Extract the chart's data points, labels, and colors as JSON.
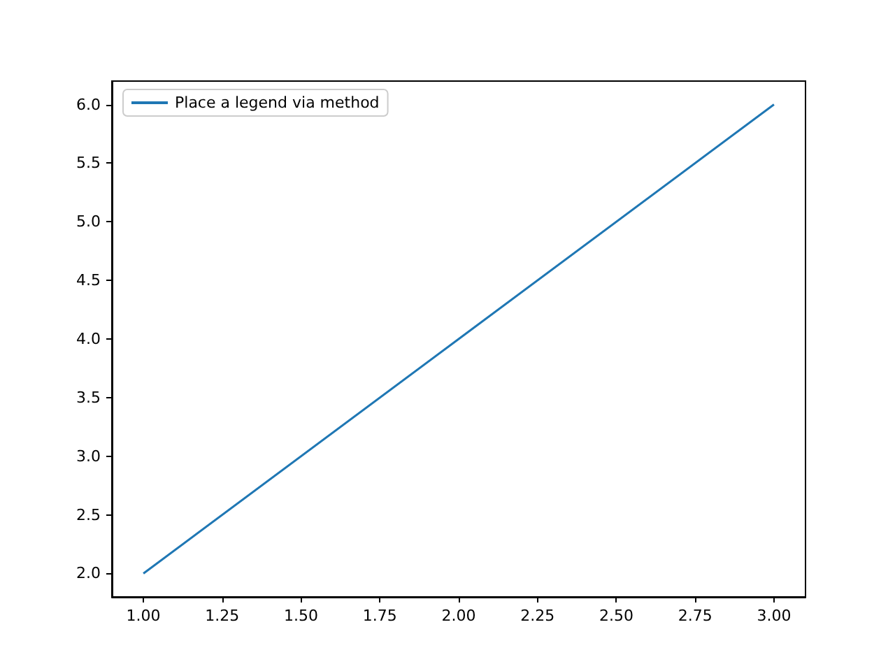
{
  "chart_data": {
    "type": "line",
    "x": [
      1,
      2,
      3
    ],
    "series": [
      {
        "name": "Place a legend via method",
        "color": "#1f77b4",
        "values": [
          2,
          4,
          6
        ]
      }
    ],
    "xlim": [
      0.9,
      3.1
    ],
    "ylim": [
      1.8,
      6.2
    ],
    "xticks": [
      {
        "value": 1,
        "label": "1.00"
      },
      {
        "value": 1.25,
        "label": "1.25"
      },
      {
        "value": 1.5,
        "label": "1.50"
      },
      {
        "value": 1.75,
        "label": "1.75"
      },
      {
        "value": 2,
        "label": "2.00"
      },
      {
        "value": 2.25,
        "label": "2.25"
      },
      {
        "value": 2.5,
        "label": "2.50"
      },
      {
        "value": 2.75,
        "label": "2.75"
      },
      {
        "value": 3,
        "label": "3.00"
      }
    ],
    "yticks": [
      {
        "value": 2,
        "label": "2.0"
      },
      {
        "value": 2.5,
        "label": "2.5"
      },
      {
        "value": 3,
        "label": "3.0"
      },
      {
        "value": 3.5,
        "label": "3.5"
      },
      {
        "value": 4,
        "label": "4.0"
      },
      {
        "value": 4.5,
        "label": "4.5"
      },
      {
        "value": 5,
        "label": "5.0"
      },
      {
        "value": 5.5,
        "label": "5.5"
      },
      {
        "value": 6,
        "label": "6.0"
      }
    ],
    "grid": false,
    "legend": "top left",
    "marker": "none",
    "line_style": "solid"
  }
}
